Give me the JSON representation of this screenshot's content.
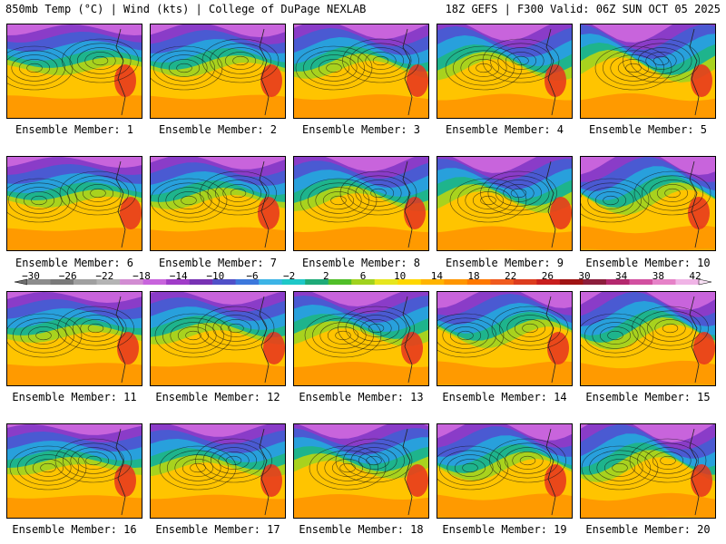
{
  "header": {
    "left": "850mb Temp (°C) | Wind (kts) | College of DuPage NEXLAB",
    "right": "18Z GEFS | F300 Valid: 06Z SUN OCT 05 2025"
  },
  "colorbar": {
    "ticks": [
      "−30",
      "−26",
      "−22",
      "−18",
      "−14",
      "−10",
      "−6",
      "−2",
      "2",
      "6",
      "10",
      "14",
      "18",
      "22",
      "26",
      "30",
      "34",
      "38",
      "42"
    ],
    "colors": [
      "#8c8c8c",
      "#7a7a7a",
      "#a0a0a0",
      "#b4b4b4",
      "#d28cd2",
      "#c864dc",
      "#a03cc8",
      "#7832b4",
      "#5050c8",
      "#3c78dc",
      "#3cb4e6",
      "#1ec8c8",
      "#1eaa78",
      "#50be28",
      "#a0d21e",
      "#e6e61e",
      "#ffd700",
      "#ffb400",
      "#ff9600",
      "#ff7800",
      "#f05a1e",
      "#dc3c1e",
      "#c81e1e",
      "#a01414",
      "#8c1e3c",
      "#b4286e",
      "#d250a0",
      "#e682c8",
      "#f0b4e6"
    ]
  },
  "panels": [
    {
      "caption": "Ensemble Member: 1"
    },
    {
      "caption": "Ensemble Member: 2"
    },
    {
      "caption": "Ensemble Member: 3"
    },
    {
      "caption": "Ensemble Member: 4"
    },
    {
      "caption": "Ensemble Member: 5"
    },
    {
      "caption": "Ensemble Member: 6"
    },
    {
      "caption": "Ensemble Member: 7"
    },
    {
      "caption": "Ensemble Member: 8"
    },
    {
      "caption": "Ensemble Member: 9"
    },
    {
      "caption": "Ensemble Member: 10"
    },
    {
      "caption": "Ensemble Member: 11"
    },
    {
      "caption": "Ensemble Member: 12"
    },
    {
      "caption": "Ensemble Member: 13"
    },
    {
      "caption": "Ensemble Member: 14"
    },
    {
      "caption": "Ensemble Member: 15"
    },
    {
      "caption": "Ensemble Member: 16"
    },
    {
      "caption": "Ensemble Member: 17"
    },
    {
      "caption": "Ensemble Member: 18"
    },
    {
      "caption": "Ensemble Member: 19"
    },
    {
      "caption": "Ensemble Member: 20"
    }
  ]
}
